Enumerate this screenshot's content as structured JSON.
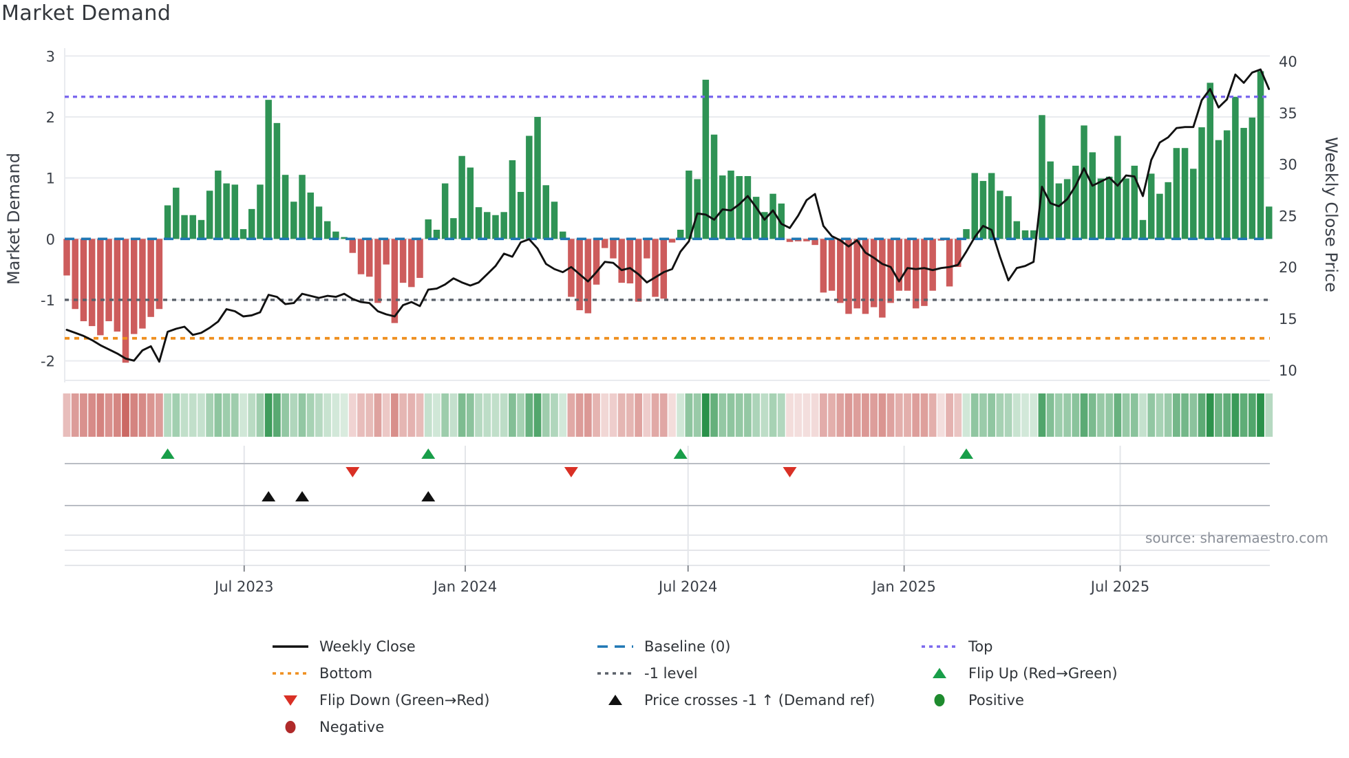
{
  "title": "Market Demand",
  "source": "source: sharemaestro.com",
  "left_axis": {
    "label": "Market Demand",
    "ticks": [
      3,
      2,
      1,
      0,
      -1,
      -2
    ]
  },
  "right_axis": {
    "label": "Weekly Close Price",
    "ticks": [
      40,
      35,
      30,
      25,
      20,
      15,
      10
    ]
  },
  "colors": {
    "positive_bar": "#2f9355",
    "negative_bar": "#cd5c5c",
    "price_line": "#111111",
    "baseline": "#1f77b4",
    "top_line": "#7b68ee",
    "bottom_line": "#ef8f1f",
    "minus_one_line": "#5a6069",
    "flip_up": "#189e49",
    "flip_down": "#d93025",
    "price_cross": "#111111",
    "positive_dot": "#1e8b2e",
    "negative_dot": "#b02a2a",
    "heat_green_rgb": "42,145,74",
    "heat_red_rgb": "191,72,66",
    "grid": "#e9ebef",
    "panel_line_strong": "#b9bdc4",
    "panel_line_light": "#e4e6ea",
    "axis_text": "#3a3f47",
    "muted_text": "#8a8f98"
  },
  "legend_columns": [
    [
      {
        "label": "Weekly Close",
        "swatch": "line-solid",
        "color_key": "price_line"
      },
      {
        "label": "Bottom",
        "swatch": "line-dotted",
        "color_key": "bottom_line"
      },
      {
        "label": "Flip Down (Green→Red)",
        "swatch": "tri-down",
        "color_key": "flip_down"
      },
      {
        "label": "Negative",
        "swatch": "circle",
        "color_key": "negative_dot"
      }
    ],
    [
      {
        "label": "Baseline (0)",
        "swatch": "line-dashed",
        "color_key": "baseline"
      },
      {
        "label": "-1 level",
        "swatch": "line-dotted",
        "color_key": "minus_one_line"
      },
      {
        "label": "Price crosses -1 ↑ (Demand ref)",
        "swatch": "tri-up",
        "color_key": "price_cross"
      }
    ],
    [
      {
        "label": "Top",
        "swatch": "line-dotted",
        "color_key": "top_line"
      },
      {
        "label": "Flip Up (Red→Green)",
        "swatch": "tri-up",
        "color_key": "flip_up"
      },
      {
        "label": "Positive",
        "swatch": "circle",
        "color_key": "positive_dot"
      }
    ]
  ],
  "chart_data": {
    "type": "bar+line",
    "x_unit": "week",
    "n_points": 144,
    "left_ylim": [
      -2.36,
      3.02
    ],
    "right_ylim": [
      8.9,
      40.5
    ],
    "x_ticks": [
      {
        "week": 21.1,
        "label": "Jul 2023"
      },
      {
        "week": 47.4,
        "label": "Jan 2024"
      },
      {
        "week": 73.9,
        "label": "Jul 2024"
      },
      {
        "week": 99.6,
        "label": "Jan 2025"
      },
      {
        "week": 125.3,
        "label": "Jul 2025"
      }
    ],
    "reference_lines": [
      {
        "name": "Baseline (0)",
        "value": 0,
        "axis": "left",
        "style": "dashed"
      },
      {
        "name": "Top",
        "value": 2.33,
        "axis": "left",
        "style": "dotted"
      },
      {
        "name": "Bottom",
        "value": -1.63,
        "axis": "left",
        "style": "dotted"
      },
      {
        "name": "-1 level",
        "value": -1.0,
        "axis": "left",
        "style": "dotted"
      }
    ],
    "markers": {
      "flip_up_weeks": [
        12,
        43,
        73,
        107
      ],
      "flip_down_weeks": [
        34,
        60,
        86
      ],
      "price_cross_weeks": [
        24,
        28,
        43
      ]
    },
    "heatmap": {
      "description": "one stripe per week, green for positive demand, red for negative, intensity proportional to magnitude"
    },
    "series": [
      {
        "name": "Market Demand",
        "type": "bar",
        "axis": "left",
        "values": [
          -0.6,
          -1.15,
          -1.35,
          -1.43,
          -1.58,
          -1.35,
          -1.52,
          -2.03,
          -1.56,
          -1.47,
          -1.28,
          -1.15,
          0.55,
          0.84,
          0.39,
          0.39,
          0.31,
          0.79,
          1.12,
          0.91,
          0.89,
          0.16,
          0.49,
          0.89,
          2.28,
          1.9,
          1.05,
          0.61,
          1.05,
          0.76,
          0.53,
          0.29,
          0.12,
          0.03,
          -0.23,
          -0.58,
          -0.62,
          -1.05,
          -0.42,
          -1.38,
          -0.72,
          -0.79,
          -0.64,
          0.32,
          0.15,
          0.91,
          0.34,
          1.36,
          1.17,
          0.52,
          0.44,
          0.39,
          0.44,
          1.29,
          0.77,
          1.69,
          2.0,
          0.88,
          0.61,
          0.12,
          -0.95,
          -1.17,
          -1.22,
          -0.75,
          -0.15,
          -0.32,
          -0.72,
          -0.73,
          -1.03,
          -0.32,
          -0.95,
          -0.98,
          -0.06,
          0.15,
          1.12,
          0.98,
          2.61,
          1.71,
          1.04,
          1.12,
          1.03,
          1.03,
          0.69,
          0.44,
          0.74,
          0.58,
          -0.05,
          -0.04,
          -0.04,
          -0.1,
          -0.88,
          -0.85,
          -1.05,
          -1.23,
          -1.14,
          -1.23,
          -1.12,
          -1.29,
          -1.05,
          -0.85,
          -0.85,
          -1.14,
          -1.1,
          -0.85,
          -0.02,
          -0.78,
          -0.46,
          0.16,
          1.08,
          0.95,
          1.08,
          0.79,
          0.7,
          0.29,
          0.14,
          0.14,
          2.03,
          1.27,
          0.91,
          0.98,
          1.2,
          1.86,
          1.42,
          0.99,
          1.02,
          1.69,
          0.99,
          1.2,
          0.31,
          1.07,
          0.74,
          0.93,
          1.49,
          1.49,
          1.15,
          1.83,
          2.56,
          1.62,
          1.78,
          2.33,
          1.82,
          1.99,
          2.75,
          0.53
        ]
      },
      {
        "name": "Weekly Close",
        "type": "line",
        "axis": "right",
        "values": [
          13.9,
          13.6,
          13.3,
          12.9,
          12.4,
          12.0,
          11.6,
          11.1,
          10.9,
          11.9,
          12.3,
          10.8,
          13.7,
          14.0,
          14.2,
          13.4,
          13.6,
          14.1,
          14.7,
          15.9,
          15.7,
          15.2,
          15.3,
          15.6,
          17.3,
          17.1,
          16.4,
          16.5,
          17.4,
          17.2,
          17.0,
          17.2,
          17.1,
          17.4,
          16.9,
          16.6,
          16.5,
          15.7,
          15.4,
          15.2,
          16.3,
          16.6,
          16.2,
          17.8,
          17.9,
          18.3,
          18.9,
          18.5,
          18.2,
          18.5,
          19.3,
          20.1,
          21.3,
          21.0,
          22.4,
          22.7,
          21.8,
          20.3,
          19.8,
          19.5,
          20.0,
          19.3,
          18.6,
          19.5,
          20.5,
          20.4,
          19.7,
          19.9,
          19.3,
          18.5,
          19.0,
          19.5,
          19.8,
          21.5,
          22.5,
          25.2,
          25.1,
          24.6,
          25.6,
          25.5,
          26.1,
          26.9,
          25.8,
          24.6,
          25.5,
          24.2,
          23.8,
          25.0,
          26.5,
          27.1,
          24.0,
          23.0,
          22.6,
          22.0,
          22.6,
          21.4,
          20.9,
          20.3,
          20.0,
          18.6,
          19.9,
          19.8,
          19.9,
          19.7,
          19.9,
          20.0,
          20.2,
          21.5,
          22.9,
          24.0,
          23.6,
          21.0,
          18.7,
          19.9,
          20.1,
          20.5,
          27.8,
          26.2,
          25.9,
          26.6,
          27.9,
          29.6,
          27.9,
          28.3,
          28.7,
          27.9,
          28.9,
          28.8,
          26.9,
          30.4,
          32.1,
          32.6,
          33.5,
          33.6,
          33.6,
          36.2,
          37.3,
          35.5,
          36.3,
          38.7,
          37.9,
          38.9,
          39.2,
          37.3
        ]
      }
    ]
  }
}
